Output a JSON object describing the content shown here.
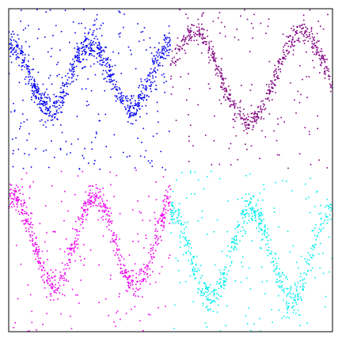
{
  "chart_data": {
    "type": "scatter",
    "title": "",
    "xlabel": "",
    "ylabel": "",
    "xlim": [
      0,
      1
    ],
    "ylim": [
      0,
      1
    ],
    "axes_visible": false,
    "ticks": "none",
    "grid": false,
    "legend": "none",
    "seed": 20240611,
    "series": [
      {
        "color": "#0000ee",
        "quadrant": "top-left",
        "x_range": [
          0.0,
          0.5
        ],
        "y_range": [
          0.5,
          1.0
        ],
        "points": 1000,
        "wave": {
          "center": 0.79,
          "amplitude": 0.1,
          "cycles": 2.0,
          "phase": 1.5,
          "noise_sd": 0.022
        },
        "outlier_fraction": 0.22
      },
      {
        "color": "#800080",
        "quadrant": "top-right",
        "x_range": [
          0.5,
          1.0
        ],
        "y_range": [
          0.5,
          1.0
        ],
        "points": 700,
        "wave": {
          "center": 0.79,
          "amplitude": 0.14,
          "cycles": 1.5,
          "phase": 0.2,
          "noise_sd": 0.018
        },
        "outlier_fraction": 0.18
      },
      {
        "color": "#ee00ee",
        "quadrant": "bottom-left",
        "x_range": [
          0.0,
          0.5
        ],
        "y_range": [
          0.0,
          0.5
        ],
        "points": 800,
        "wave": {
          "center": 0.28,
          "amplitude": 0.14,
          "cycles": 2.0,
          "phase": 1.2,
          "noise_sd": 0.025
        },
        "outlier_fraction": 0.2
      },
      {
        "color": "#00eeee",
        "quadrant": "bottom-right",
        "x_range": [
          0.5,
          1.0
        ],
        "y_range": [
          0.0,
          0.5
        ],
        "points": 700,
        "wave": {
          "center": 0.24,
          "amplitude": 0.14,
          "cycles": 2.0,
          "phase": 1.6,
          "noise_sd": 0.025
        },
        "outlier_fraction": 0.2
      }
    ]
  }
}
